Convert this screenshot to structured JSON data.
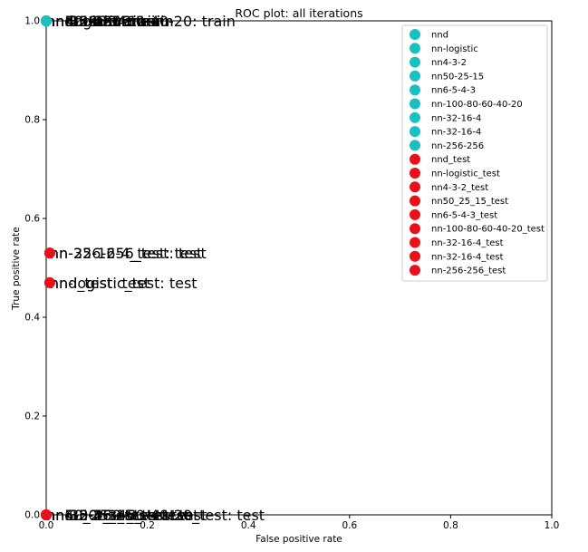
{
  "chart_data": {
    "type": "scatter",
    "title": "ROC plot: all iterations",
    "xlabel": "False positive rate",
    "ylabel": "True positive rate",
    "xlim": [
      0,
      1
    ],
    "ylim": [
      0,
      1
    ],
    "xticks": [
      "0.0",
      "0.2",
      "0.4",
      "0.6",
      "0.8",
      "1.0"
    ],
    "yticks": [
      "0.0",
      "0.2",
      "0.4",
      "0.6",
      "0.8",
      "1.0"
    ],
    "grid": false,
    "legend_position": "top-right",
    "colors": {
      "train": "#1abfbf",
      "test": "#e8101c"
    },
    "series": [
      {
        "name": "nnd",
        "group": "train",
        "x": 0.0,
        "y": 1.0,
        "annotation": "nnd: train"
      },
      {
        "name": "nn-logistic",
        "group": "train",
        "x": 0.0,
        "y": 1.0,
        "annotation": "nn-logistic: train"
      },
      {
        "name": "nn4-3-2",
        "group": "train",
        "x": 0.0,
        "y": 1.0,
        "annotation": "nn4-3-2: train"
      },
      {
        "name": "nn50-25-15",
        "group": "train",
        "x": 0.0,
        "y": 1.0,
        "annotation": "nn50-25-15: train"
      },
      {
        "name": "nn6-5-4-3",
        "group": "train",
        "x": 0.0,
        "y": 1.0,
        "annotation": "nn6-5-4-3: train"
      },
      {
        "name": "nn-100-80-60-40-20",
        "group": "train",
        "x": 0.0,
        "y": 1.0,
        "annotation": "nn-100-80-60-40-20: train"
      },
      {
        "name": "nn-32-16-4",
        "group": "train",
        "x": 0.0,
        "y": 1.0,
        "annotation": "nn-32-16-4: train"
      },
      {
        "name": "nn-32-16-4",
        "group": "train",
        "x": 0.0,
        "y": 1.0,
        "annotation": "nn-32-16-4: train"
      },
      {
        "name": "nn-256-256",
        "group": "train",
        "x": 0.0,
        "y": 1.0,
        "annotation": "nn-256-256: train"
      },
      {
        "name": "nnd_test",
        "group": "test",
        "x": 0.007,
        "y": 0.47,
        "annotation": "nnd_test: test"
      },
      {
        "name": "nn-logistic_test",
        "group": "test",
        "x": 0.007,
        "y": 0.47,
        "annotation": "nn-logistic_test: test"
      },
      {
        "name": "nn4-3-2_test",
        "group": "test",
        "x": 0.0,
        "y": 0.0,
        "annotation": "nn4-3-2_test: test"
      },
      {
        "name": "nn50_25_15_test",
        "group": "test",
        "x": 0.0,
        "y": 0.0,
        "annotation": "nn50_25_15_test: test"
      },
      {
        "name": "nn6-5-4-3_test",
        "group": "test",
        "x": 0.0,
        "y": 0.0,
        "annotation": "nn6-5-4-3_test: test"
      },
      {
        "name": "nn-100-80-60-40-20_test",
        "group": "test",
        "x": 0.0,
        "y": 0.0,
        "annotation": "nn-100-80-60-40-20_test: test"
      },
      {
        "name": "nn-32-16-4_test",
        "group": "test",
        "x": 0.007,
        "y": 0.53,
        "annotation": "nn-32-16-4_test: test"
      },
      {
        "name": "nn-32-16-4_test",
        "group": "test",
        "x": 0.0,
        "y": 0.0,
        "annotation": "nn-32-16-4_test: test"
      },
      {
        "name": "nn-256-256_test",
        "group": "test",
        "x": 0.007,
        "y": 0.53,
        "annotation": "nn-256-256_test: test"
      }
    ]
  }
}
